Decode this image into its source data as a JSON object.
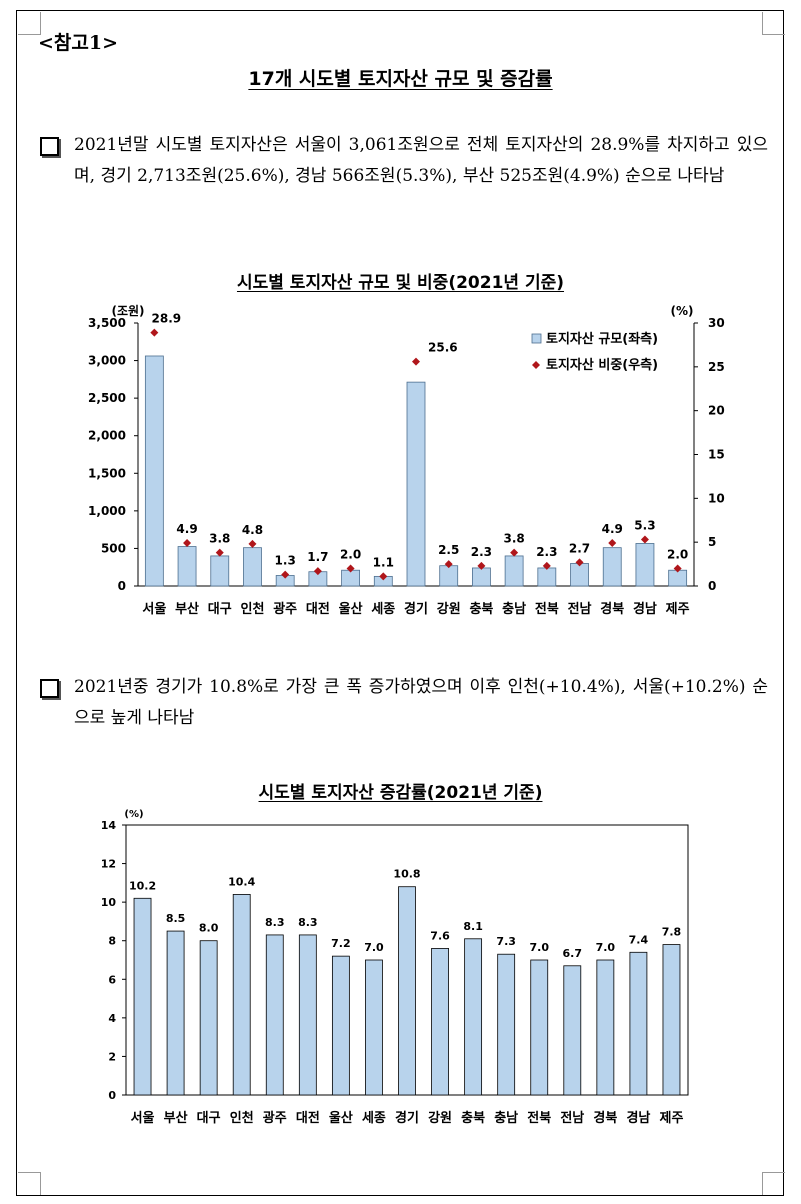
{
  "reference_label": "<참고1>",
  "title": "17개 시도별 토지자산 규모 및 증감률",
  "bullets": [
    "2021년말 시도별 토지자산은 서울이 3,061조원으로 전체 토지자산의 28.9%를 차지하고 있으며, 경기 2,713조원(25.6%), 경남 566조원(5.3%), 부산 525조원(4.9%) 순으로 나타남",
    "2021년중 경기가 10.8%로 가장 큰 폭 증가하였으며 이후 인천(+10.4%), 서울(+10.2%) 순으로 높게 나타남"
  ],
  "chart_data": [
    {
      "type": "bar",
      "title": "시도별 토지자산 규모 및 비중(2021년 기준)",
      "categories": [
        "서울",
        "부산",
        "대구",
        "인천",
        "광주",
        "대전",
        "울산",
        "세종",
        "경기",
        "강원",
        "충북",
        "충남",
        "전북",
        "전남",
        "경북",
        "경남",
        "제주"
      ],
      "series": [
        {
          "name": "토지자산 규모(좌측)",
          "axis": "left",
          "kind": "bar",
          "color": "#b8d3ec",
          "values": [
            3061,
            525,
            400,
            510,
            140,
            190,
            210,
            128,
            2713,
            270,
            240,
            400,
            240,
            300,
            510,
            566,
            210
          ]
        },
        {
          "name": "토지자산 비중(우측)",
          "axis": "right",
          "kind": "marker",
          "color": "#b0161b",
          "values": [
            28.9,
            4.9,
            3.8,
            4.8,
            1.3,
            1.7,
            2.0,
            1.1,
            25.6,
            2.5,
            2.3,
            3.8,
            2.3,
            2.7,
            4.9,
            5.3,
            2.0
          ],
          "labels": [
            "28.9",
            "4.9",
            "3.8",
            "4.8",
            "1.3",
            "1.7",
            "2.0",
            "1.1",
            "25.6",
            "2.5",
            "2.3",
            "3.8",
            "2.3",
            "2.7",
            "4.9",
            "5.3",
            "2.0"
          ]
        }
      ],
      "y_left": {
        "unit": "(조원)",
        "ylim": [
          0,
          3500
        ],
        "ticks": [
          "0",
          "500",
          "1,000",
          "1,500",
          "2,000",
          "2,500",
          "3,000",
          "3,500"
        ]
      },
      "y_right": {
        "unit": "(%)",
        "ylim": [
          0,
          30
        ],
        "ticks": [
          "0",
          "5",
          "10",
          "15",
          "20",
          "25",
          "30"
        ]
      },
      "legend_position": "top-right",
      "grid": false
    },
    {
      "type": "bar",
      "title": "시도별 토지자산 증감률(2021년 기준)",
      "categories": [
        "서울",
        "부산",
        "대구",
        "인천",
        "광주",
        "대전",
        "울산",
        "세종",
        "경기",
        "강원",
        "충북",
        "충남",
        "전북",
        "전남",
        "경북",
        "경남",
        "제주"
      ],
      "values": [
        10.2,
        8.5,
        8.0,
        10.4,
        8.3,
        8.3,
        7.2,
        7.0,
        10.8,
        7.6,
        8.1,
        7.3,
        7.0,
        6.7,
        7.0,
        7.4,
        7.8
      ],
      "labels": [
        "10.2",
        "8.5",
        "8.0",
        "10.4",
        "8.3",
        "8.3",
        "7.2",
        "7.0",
        "10.8",
        "7.6",
        "8.1",
        "7.3",
        "7.0",
        "6.7",
        "7.0",
        "7.4",
        "7.8"
      ],
      "color": "#b8d3ec",
      "y": {
        "unit": "(%)",
        "ylim": [
          0,
          14
        ],
        "ticks": [
          "0",
          "2",
          "4",
          "6",
          "8",
          "10",
          "12",
          "14"
        ]
      },
      "grid": false
    }
  ]
}
